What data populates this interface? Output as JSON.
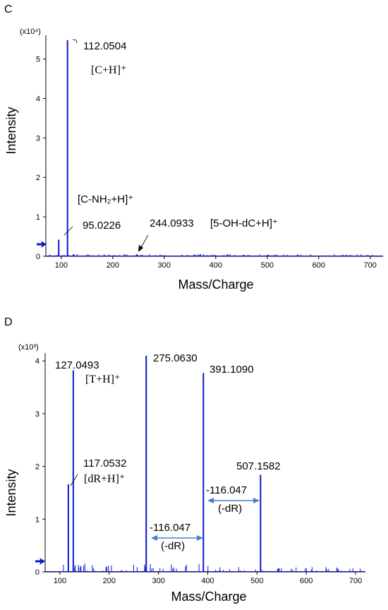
{
  "chart_data": [
    {
      "panel": "C",
      "type": "bar",
      "multiplier": "(x10⁴)",
      "xlabel": "Mass/Charge",
      "ylabel": "Intensity",
      "xlim": [
        70,
        725
      ],
      "ylim": [
        0,
        5.6
      ],
      "x_ticks": [
        100,
        200,
        300,
        400,
        500,
        600,
        700
      ],
      "y_ticks": [
        0,
        1,
        2,
        3,
        4,
        5
      ],
      "peaks": [
        {
          "x": 95.0226,
          "y": 0.42
        },
        {
          "x": 112.0504,
          "y": 5.48
        }
      ],
      "labels": [
        {
          "mz": "112.0504",
          "ion": "[C+H]⁺"
        },
        {
          "mz": "95.0226",
          "ion": "[C-NH₂+H]⁺"
        },
        {
          "mz": "244.0933",
          "ion": "[5-OH-dC+H]⁺"
        }
      ]
    },
    {
      "panel": "D",
      "type": "bar",
      "multiplier": "(x10³)",
      "xlabel": "Mass/Charge",
      "ylabel": "Intensity",
      "xlim": [
        70,
        720
      ],
      "ylim": [
        0,
        4.15
      ],
      "x_ticks": [
        100,
        200,
        300,
        400,
        500,
        600,
        700
      ],
      "y_ticks": [
        0,
        1,
        2,
        3,
        4
      ],
      "peaks": [
        {
          "x": 117.0532,
          "y": 1.66
        },
        {
          "x": 127.0493,
          "y": 3.82
        },
        {
          "x": 275.063,
          "y": 4.1
        },
        {
          "x": 391.109,
          "y": 3.77
        },
        {
          "x": 507.1582,
          "y": 1.84
        }
      ],
      "labels": [
        {
          "mz": "127.0493",
          "ion": "[T+H]⁺"
        },
        {
          "mz": "275.0630",
          "ion": ""
        },
        {
          "mz": "391.1090",
          "ion": ""
        },
        {
          "mz": "117.0532",
          "ion": "[dR+H]⁺"
        },
        {
          "mz": "507.1582",
          "ion": ""
        }
      ],
      "differences": [
        {
          "value": "-116.047",
          "label": "(-dR)",
          "from": 275.063,
          "to": 391.109
        },
        {
          "value": "-116.047",
          "label": "(-dR)",
          "from": 391.109,
          "to": 507.158
        }
      ]
    }
  ]
}
